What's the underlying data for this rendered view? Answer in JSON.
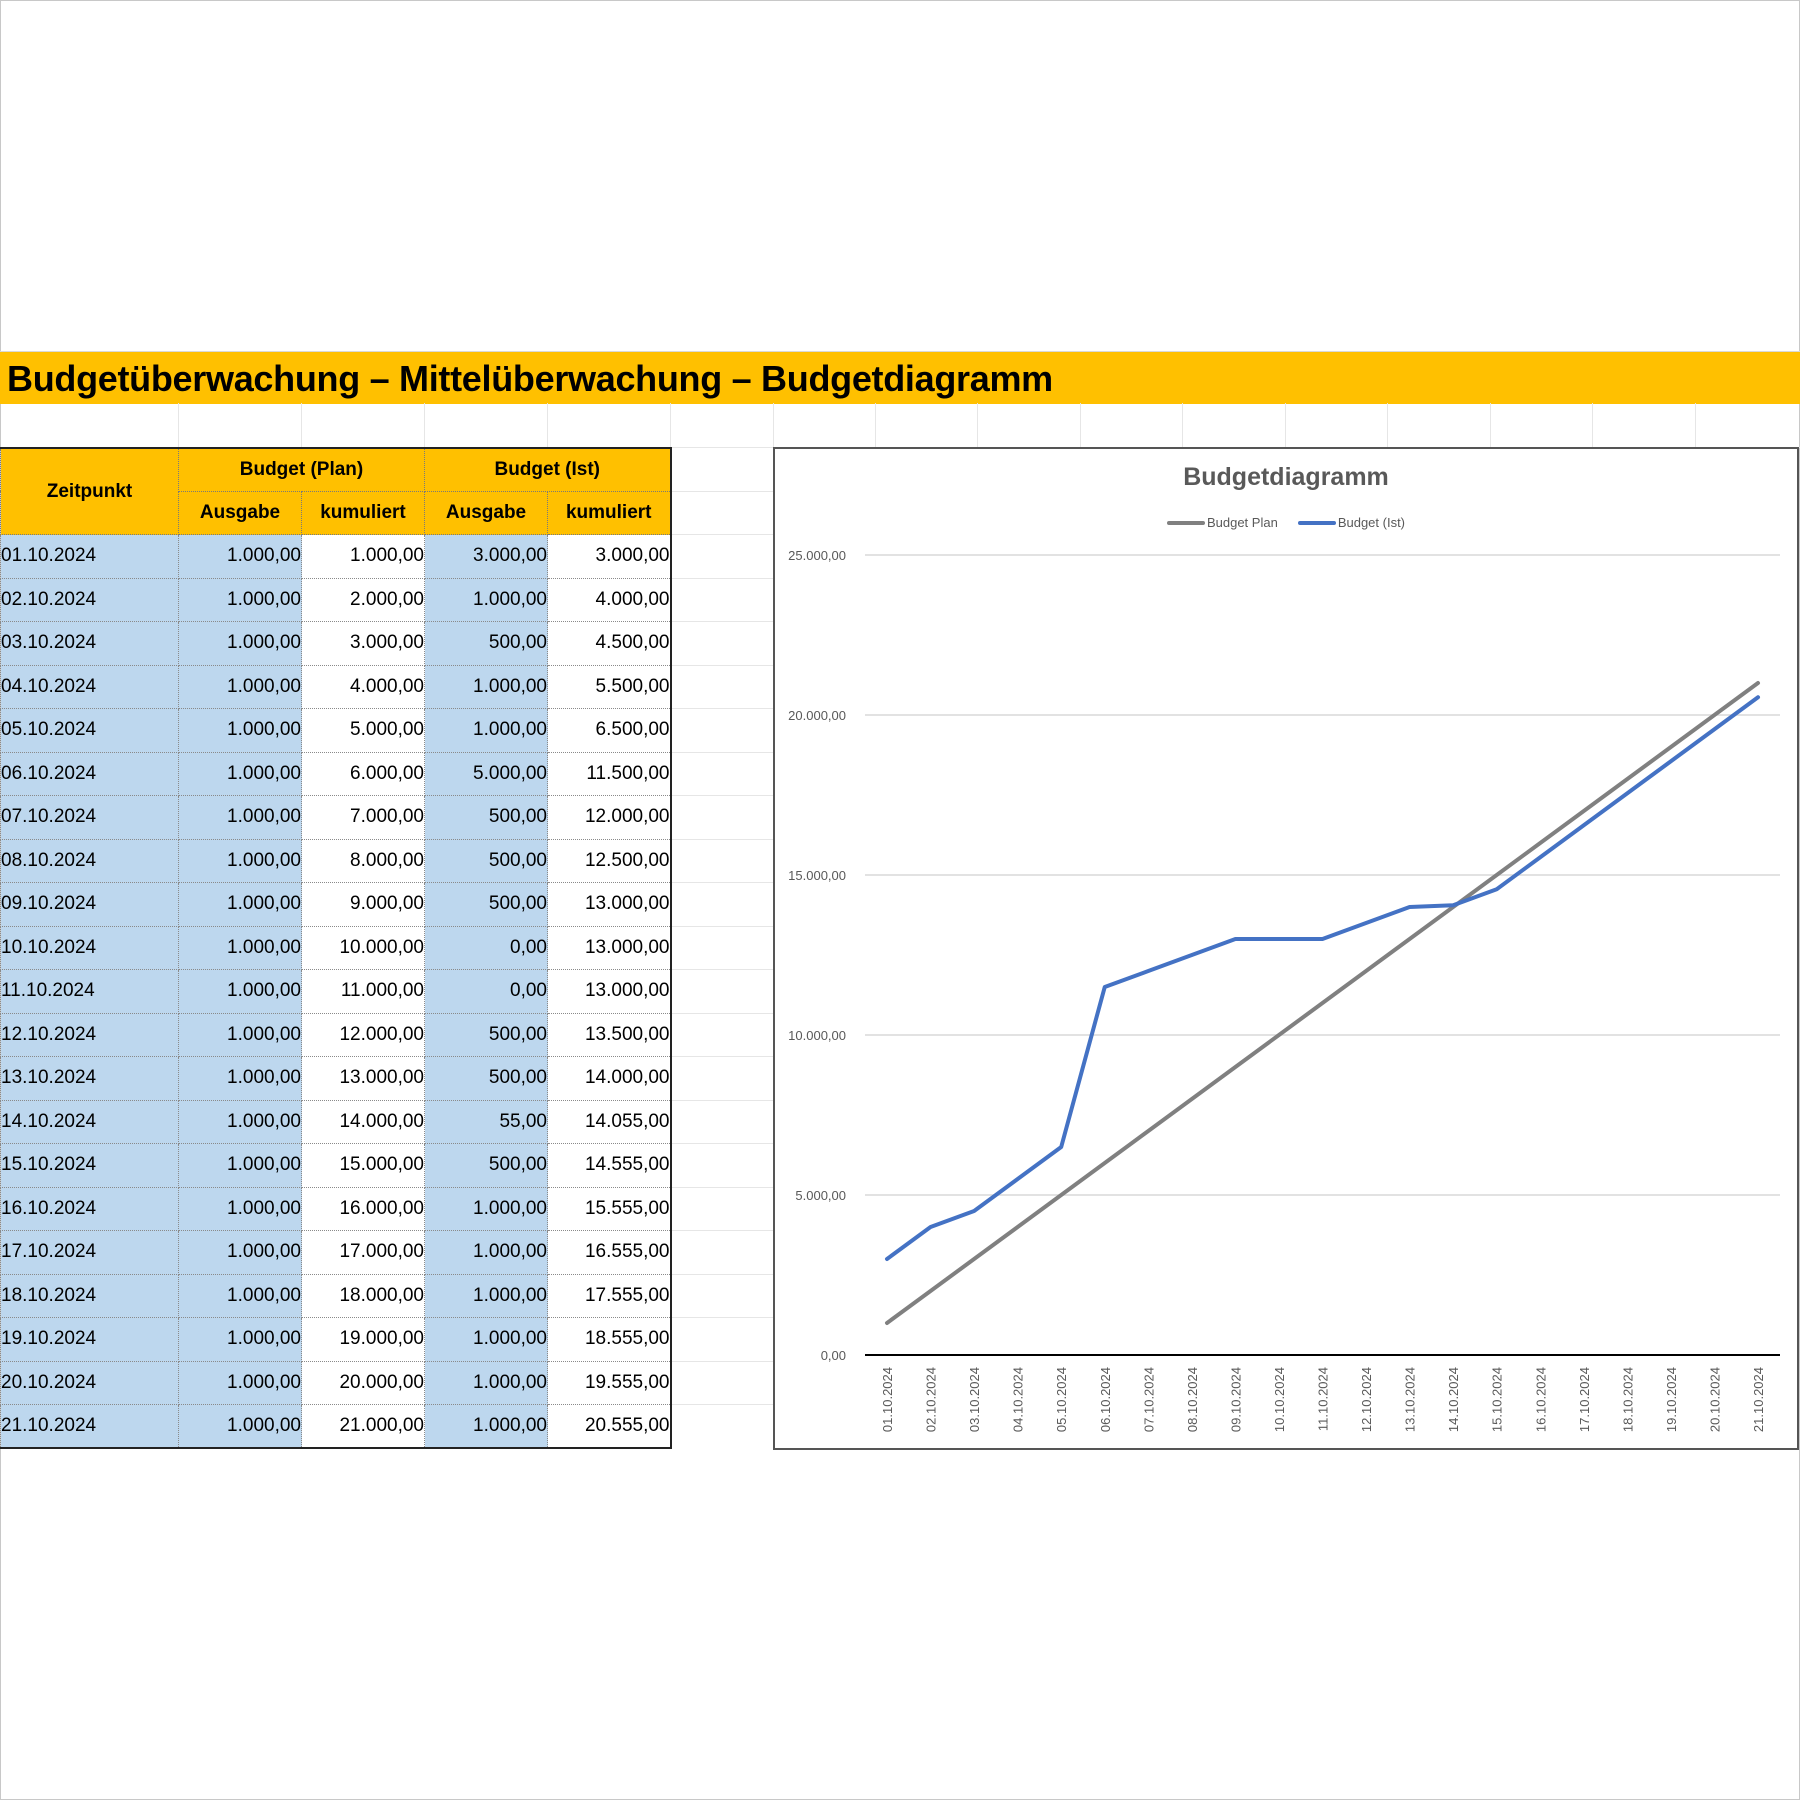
{
  "title": "Budgetüberwachung – Mittelüberwachung – Budgetdiagramm",
  "table": {
    "headers": {
      "zeitpunkt": "Zeitpunkt",
      "plan": "Budget (Plan)",
      "ist": "Budget (Ist)",
      "plan_ausgabe": "Ausgabe",
      "plan_kumuliert": "kumuliert",
      "ist_ausgabe": "Ausgabe",
      "ist_kumuliert": "kumuliert"
    },
    "rows": [
      {
        "date": "01.10.2024",
        "plan_ausgabe": "1.000,00",
        "plan_kumuliert": "1.000,00",
        "ist_ausgabe": "3.000,00",
        "ist_kumuliert": "3.000,00"
      },
      {
        "date": "02.10.2024",
        "plan_ausgabe": "1.000,00",
        "plan_kumuliert": "2.000,00",
        "ist_ausgabe": "1.000,00",
        "ist_kumuliert": "4.000,00"
      },
      {
        "date": "03.10.2024",
        "plan_ausgabe": "1.000,00",
        "plan_kumuliert": "3.000,00",
        "ist_ausgabe": "500,00",
        "ist_kumuliert": "4.500,00"
      },
      {
        "date": "04.10.2024",
        "plan_ausgabe": "1.000,00",
        "plan_kumuliert": "4.000,00",
        "ist_ausgabe": "1.000,00",
        "ist_kumuliert": "5.500,00"
      },
      {
        "date": "05.10.2024",
        "plan_ausgabe": "1.000,00",
        "plan_kumuliert": "5.000,00",
        "ist_ausgabe": "1.000,00",
        "ist_kumuliert": "6.500,00"
      },
      {
        "date": "06.10.2024",
        "plan_ausgabe": "1.000,00",
        "plan_kumuliert": "6.000,00",
        "ist_ausgabe": "5.000,00",
        "ist_kumuliert": "11.500,00"
      },
      {
        "date": "07.10.2024",
        "plan_ausgabe": "1.000,00",
        "plan_kumuliert": "7.000,00",
        "ist_ausgabe": "500,00",
        "ist_kumuliert": "12.000,00"
      },
      {
        "date": "08.10.2024",
        "plan_ausgabe": "1.000,00",
        "plan_kumuliert": "8.000,00",
        "ist_ausgabe": "500,00",
        "ist_kumuliert": "12.500,00"
      },
      {
        "date": "09.10.2024",
        "plan_ausgabe": "1.000,00",
        "plan_kumuliert": "9.000,00",
        "ist_ausgabe": "500,00",
        "ist_kumuliert": "13.000,00"
      },
      {
        "date": "10.10.2024",
        "plan_ausgabe": "1.000,00",
        "plan_kumuliert": "10.000,00",
        "ist_ausgabe": "0,00",
        "ist_kumuliert": "13.000,00"
      },
      {
        "date": "11.10.2024",
        "plan_ausgabe": "1.000,00",
        "plan_kumuliert": "11.000,00",
        "ist_ausgabe": "0,00",
        "ist_kumuliert": "13.000,00"
      },
      {
        "date": "12.10.2024",
        "plan_ausgabe": "1.000,00",
        "plan_kumuliert": "12.000,00",
        "ist_ausgabe": "500,00",
        "ist_kumuliert": "13.500,00"
      },
      {
        "date": "13.10.2024",
        "plan_ausgabe": "1.000,00",
        "plan_kumuliert": "13.000,00",
        "ist_ausgabe": "500,00",
        "ist_kumuliert": "14.000,00"
      },
      {
        "date": "14.10.2024",
        "plan_ausgabe": "1.000,00",
        "plan_kumuliert": "14.000,00",
        "ist_ausgabe": "55,00",
        "ist_kumuliert": "14.055,00"
      },
      {
        "date": "15.10.2024",
        "plan_ausgabe": "1.000,00",
        "plan_kumuliert": "15.000,00",
        "ist_ausgabe": "500,00",
        "ist_kumuliert": "14.555,00"
      },
      {
        "date": "16.10.2024",
        "plan_ausgabe": "1.000,00",
        "plan_kumuliert": "16.000,00",
        "ist_ausgabe": "1.000,00",
        "ist_kumuliert": "15.555,00"
      },
      {
        "date": "17.10.2024",
        "plan_ausgabe": "1.000,00",
        "plan_kumuliert": "17.000,00",
        "ist_ausgabe": "1.000,00",
        "ist_kumuliert": "16.555,00"
      },
      {
        "date": "18.10.2024",
        "plan_ausgabe": "1.000,00",
        "plan_kumuliert": "18.000,00",
        "ist_ausgabe": "1.000,00",
        "ist_kumuliert": "17.555,00"
      },
      {
        "date": "19.10.2024",
        "plan_ausgabe": "1.000,00",
        "plan_kumuliert": "19.000,00",
        "ist_ausgabe": "1.000,00",
        "ist_kumuliert": "18.555,00"
      },
      {
        "date": "20.10.2024",
        "plan_ausgabe": "1.000,00",
        "plan_kumuliert": "20.000,00",
        "ist_ausgabe": "1.000,00",
        "ist_kumuliert": "19.555,00"
      },
      {
        "date": "21.10.2024",
        "plan_ausgabe": "1.000,00",
        "plan_kumuliert": "21.000,00",
        "ist_ausgabe": "1.000,00",
        "ist_kumuliert": "20.555,00"
      }
    ]
  },
  "colors": {
    "header_bg": "#FFC000",
    "input_bg": "#BDD7EE",
    "plan_line": "#808080",
    "ist_line": "#4472C4",
    "chart_text": "#595959",
    "gridline": "#D9D9D9"
  },
  "chart_data": {
    "type": "line",
    "title": "Budgetdiagramm",
    "xlabel": "",
    "ylabel": "",
    "ylim": [
      0,
      25000
    ],
    "grid": true,
    "legend_position": "top",
    "y_ticks": [
      "0,00",
      "5.000,00",
      "10.000,00",
      "15.000,00",
      "20.000,00",
      "25.000,00"
    ],
    "y_tick_values": [
      0,
      5000,
      10000,
      15000,
      20000,
      25000
    ],
    "categories": [
      "01.10.2024",
      "02.10.2024",
      "03.10.2024",
      "04.10.2024",
      "05.10.2024",
      "06.10.2024",
      "07.10.2024",
      "08.10.2024",
      "09.10.2024",
      "10.10.2024",
      "11.10.2024",
      "12.10.2024",
      "13.10.2024",
      "14.10.2024",
      "15.10.2024",
      "16.10.2024",
      "17.10.2024",
      "18.10.2024",
      "19.10.2024",
      "20.10.2024",
      "21.10.2024"
    ],
    "series": [
      {
        "name": "Budget Plan",
        "color": "#808080",
        "values": [
          1000,
          2000,
          3000,
          4000,
          5000,
          6000,
          7000,
          8000,
          9000,
          10000,
          11000,
          12000,
          13000,
          14000,
          15000,
          16000,
          17000,
          18000,
          19000,
          20000,
          21000
        ]
      },
      {
        "name": "Budget (Ist)",
        "color": "#4472C4",
        "values": [
          3000,
          4000,
          4500,
          5500,
          6500,
          11500,
          12000,
          12500,
          13000,
          13000,
          13000,
          13500,
          14000,
          14055,
          14555,
          15555,
          16555,
          17555,
          18555,
          19555,
          20555
        ]
      }
    ]
  }
}
